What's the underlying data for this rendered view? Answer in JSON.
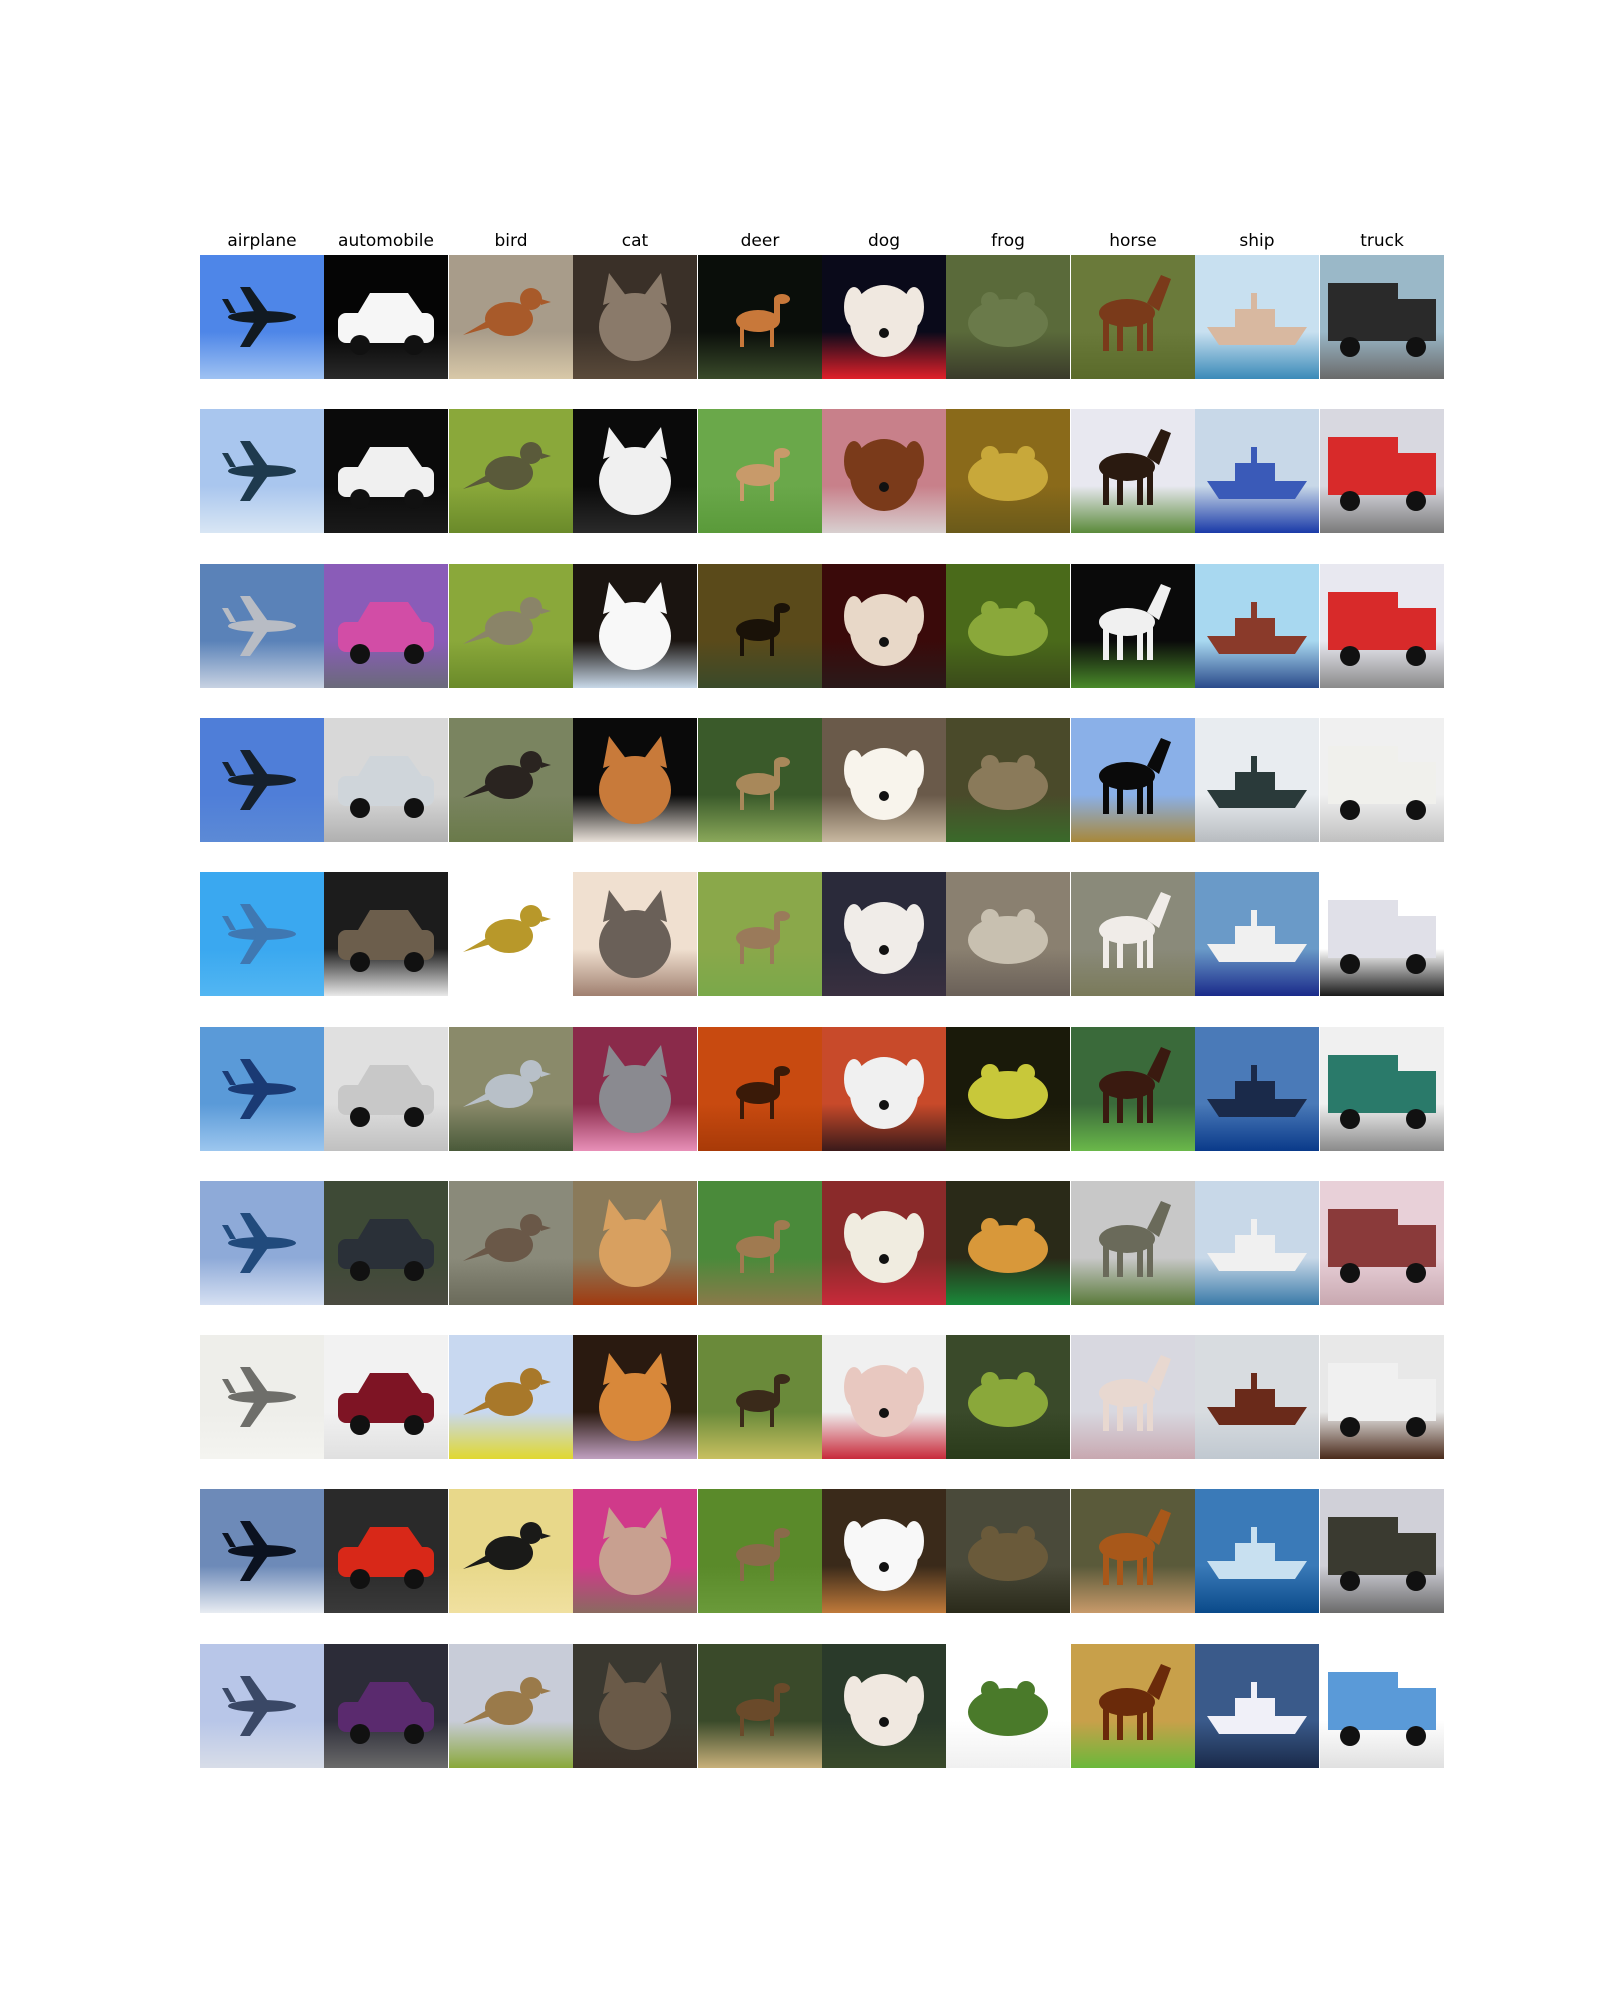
{
  "figure": {
    "classes": [
      "airplane",
      "automobile",
      "bird",
      "cat",
      "deer",
      "dog",
      "frog",
      "horse",
      "ship",
      "truck"
    ],
    "rows": 10,
    "samples_per_class": 10
  },
  "thumb_style": {
    "airplane": {
      "sky_top": [
        "#4e86e8",
        "#a9c6ee",
        "#5a82b8",
        "#4f7ed8",
        "#3aa8f0",
        "#5a9ad8",
        "#8eaad8",
        "#eeeeea",
        "#6d8ab8",
        "#b8c6e8"
      ],
      "sky_bottom": [
        "#9fc2f2",
        "#d8e6f4",
        "#c8d2e2",
        "#5c8ad6",
        "#52b6f2",
        "#9cc6ee",
        "#d6e0f2",
        "#f4f4f0",
        "#e8ecf2",
        "#d8dde8"
      ],
      "shape": [
        "#111a22",
        "#1e3a4e",
        "#b8bcc4",
        "#15202c",
        "#3f78b2",
        "#1a3a74",
        "#214a7c",
        "#6e6e6a",
        "#0b1220",
        "#3a4866"
      ]
    },
    "automobile": {
      "bg": [
        "#050505",
        "#0a0a0a",
        "#8a5cb8",
        "#d8d8d8",
        "#1c1c1c",
        "#e0e0e0",
        "#3e4a36",
        "#f2f2f2",
        "#2a2a2a",
        "#2c2c38"
      ],
      "body": [
        "#f6f6f6",
        "#f0f0f0",
        "#d24da6",
        "#cfd5da",
        "#6c5e4c",
        "#c8c8c8",
        "#2a3038",
        "#7e1424",
        "#d82818",
        "#5a2a6e"
      ],
      "ground": [
        "#2a2a2a",
        "#1a1a1a",
        "#6a6a7a",
        "#b0b0b0",
        "#e8e8e8",
        "#c0c0c0",
        "#4a4a40",
        "#e0e0e0",
        "#3a3a3a",
        "#6a6a6a"
      ]
    },
    "bird": {
      "bg": [
        "#a89c8a",
        "#8aa83a",
        "#8aa83a",
        "#7a8460",
        "#ffffff",
        "#8a8a6a",
        "#8a8a7a",
        "#c8d8f0",
        "#e8d88a",
        "#c8ccd8"
      ],
      "body": [
        "#a85a2a",
        "#5a5a3a",
        "#8a8468",
        "#2a2420",
        "#b8982a",
        "#b8c0c8",
        "#6a5848",
        "#a8782a",
        "#1a1a18",
        "#9a7a4a"
      ],
      "ground": [
        "#d8c8a8",
        "#6a8a2a",
        "#6a8a2a",
        "#6a7a4a",
        "#ffffff",
        "#4a5a3a",
        "#6a6a5a",
        "#e0d830",
        "#f0e0a0",
        "#8aa83a"
      ]
    },
    "cat": {
      "bg": [
        "#3a3028",
        "#0a0a0a",
        "#1a1410",
        "#0a0a0a",
        "#f0e0d0",
        "#8a2a4a",
        "#8a7a5a",
        "#2a1a10",
        "#d03a8a",
        "#3a3830"
      ],
      "body": [
        "#8a7a6a",
        "#f0f0f0",
        "#f8f8f8",
        "#c87a3a",
        "#6a6058",
        "#8a8a90",
        "#d8a060",
        "#d8883a",
        "#c8a090",
        "#6a5a48"
      ],
      "ground": [
        "#5a4a3a",
        "#2a2a2a",
        "#c8d8e8",
        "#e8e0d8",
        "#a08070",
        "#e890b8",
        "#a03a10",
        "#c0a0c0",
        "#8a6a60",
        "#3a3028"
      ]
    },
    "deer": {
      "bg": [
        "#0a0e0a",
        "#6aa84a",
        "#5a4a1a",
        "#3a5a2a",
        "#8aa84a",
        "#c84a10",
        "#4a8a3a",
        "#6a8a3a",
        "#5a8a2a",
        "#3a4a2a"
      ],
      "body": [
        "#c8783a",
        "#c89a6a",
        "#1a1208",
        "#a8885a",
        "#9a7a5a",
        "#3a1a08",
        "#a07a50",
        "#3a2a1a",
        "#8a6a4a",
        "#6a4a2a"
      ],
      "ground": [
        "#3a4a2a",
        "#5a9a3a",
        "#3a4a2a",
        "#8aa85a",
        "#7aa84a",
        "#a83a08",
        "#8a7a4a",
        "#c8c060",
        "#6a9a3a",
        "#c8b07a"
      ]
    },
    "dog": {
      "bg": [
        "#0a0a1a",
        "#c8808a",
        "#3a0a0a",
        "#6a5a4a",
        "#2a2a3a",
        "#c84a2a",
        "#8a2a2a",
        "#f0f0f0",
        "#3a2a1a",
        "#2a3a2a"
      ],
      "body": [
        "#f0e8e0",
        "#7a3a1a",
        "#e8d8c8",
        "#f8f4ec",
        "#f0ece8",
        "#f0f0f0",
        "#f0ece0",
        "#e8c8c0",
        "#f8f8f8",
        "#f0e8e0"
      ],
      "ground": [
        "#e0202a",
        "#d8d0d0",
        "#2a1a1a",
        "#c8b8a0",
        "#3a3040",
        "#3a1a1a",
        "#c82a3a",
        "#c82a3a",
        "#c07a3a",
        "#3a4a2a"
      ]
    },
    "frog": {
      "bg": [
        "#5a6a3a",
        "#8a6a1a",
        "#4a6a1a",
        "#4a4a2a",
        "#8a8070",
        "#1a1a0a",
        "#2a2a18",
        "#3a4a2a",
        "#4a4a3a",
        "#ffffff"
      ],
      "body": [
        "#6a7a4a",
        "#c8a83a",
        "#8aa83a",
        "#8a7a5a",
        "#c8c0b0",
        "#c8c83a",
        "#d8983a",
        "#8aa83a",
        "#6a5a3a",
        "#4a7a2a"
      ],
      "ground": [
        "#3a3a2a",
        "#6a5a1a",
        "#3a4a1a",
        "#3a6a2a",
        "#6a6058",
        "#2a2a10",
        "#1a8a3a",
        "#2a3a1a",
        "#2a2a1a",
        "#f0f0f0"
      ]
    },
    "horse": {
      "bg": [
        "#6a7a3a",
        "#e8e8f0",
        "#0a0a0a",
        "#8ab0e8",
        "#8a8a7a",
        "#3a6a3a",
        "#c8c8c8",
        "#d8d8e0",
        "#5a5a3a",
        "#c8a04a"
      ],
      "body": [
        "#7a3a1a",
        "#2a1a10",
        "#f0f0f0",
        "#0a0a0a",
        "#f0ece8",
        "#3a1a10",
        "#6a6a5a",
        "#e8d8d0",
        "#a8581a",
        "#6a2a0a"
      ],
      "ground": [
        "#5a6a2a",
        "#5a8a3a",
        "#4a8a2a",
        "#a8883a",
        "#7a7a5a",
        "#6ab84a",
        "#5a7a3a",
        "#c8a8b0",
        "#c89a6a",
        "#6ab83a"
      ]
    },
    "ship": {
      "bg": [
        "#c8e0f0",
        "#c8d8e8",
        "#a8d8f0",
        "#e8ecf0",
        "#6a9ac8",
        "#4a7ab8",
        "#c8d8e8",
        "#d8dce0",
        "#3a7ab8",
        "#3a5a8a"
      ],
      "body": [
        "#d8b8a0",
        "#3a5ab8",
        "#8a3a2a",
        "#2a3a3a",
        "#f0f0f0",
        "#1a2a4a",
        "#f0f0f0",
        "#6a2a1a",
        "#c8e0f0",
        "#f0f0f8"
      ],
      "ground": [
        "#3a8ab8",
        "#1a3aa8",
        "#2a4a8a",
        "#b8bcc0",
        "#1a2a8a",
        "#0a3a8a",
        "#3a7aa8",
        "#c0c8d0",
        "#0a4a8a",
        "#1a2a4a"
      ]
    },
    "truck": {
      "bg": [
        "#9ab8c8",
        "#d8d8e0",
        "#e8e8f0",
        "#f0f0f0",
        "#ffffff",
        "#f0f0f0",
        "#e8d0d8",
        "#e8e8e8",
        "#d0d0d8",
        "#ffffff"
      ],
      "body": [
        "#2a2a2a",
        "#d82a2a",
        "#d82a2a",
        "#f0f0ec",
        "#e0e0e8",
        "#2a7a6a",
        "#8a3a3a",
        "#f0f0f0",
        "#3a3a30",
        "#5a9ad8"
      ],
      "ground": [
        "#6a6a6a",
        "#7a7a7a",
        "#8a8a8a",
        "#c0c0c0",
        "#1a1a1a",
        "#8a8a8a",
        "#c8a8b0",
        "#4a2a1a",
        "#6a6a6a",
        "#e0e0e0"
      ]
    }
  }
}
